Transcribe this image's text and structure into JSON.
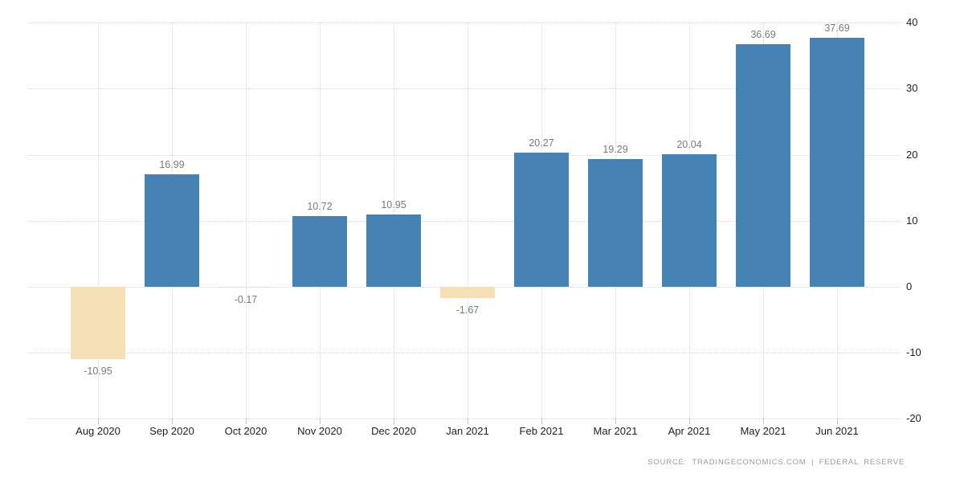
{
  "chart_data": {
    "type": "bar",
    "title": "",
    "categories": [
      "Aug 2020",
      "Sep 2020",
      "Oct 2020",
      "Nov 2020",
      "Dec 2020",
      "Jan 2021",
      "Feb 2021",
      "Mar 2021",
      "Apr 2021",
      "May 2021",
      "Jun 2021"
    ],
    "values": [
      -10.95,
      16.99,
      -0.17,
      10.72,
      10.95,
      -1.67,
      20.27,
      19.29,
      20.04,
      36.69,
      37.69
    ],
    "value_labels": [
      "-10.95",
      "16.99",
      "-0.17",
      "10.72",
      "10.95",
      "-1.67",
      "20.27",
      "19.29",
      "20.04",
      "36.69",
      "37.69"
    ],
    "yticks": [
      40,
      30,
      20,
      10,
      0,
      -10,
      -20
    ],
    "ylim": [
      -20,
      40
    ],
    "xlabel": "",
    "ylabel": "",
    "grid": "dotted, horizontal and vertical at category centers",
    "legend": "none",
    "colors": {
      "positive_bar": "#4682B4",
      "negative_bar": "#F5DFB4",
      "gridline": "#D8D8D8",
      "tick": "#C9C9C9",
      "axis_label": "#1F1F1F",
      "value_label": "#7A7A7A",
      "source_text": "#9A9A9A",
      "background": "#FFFFFF"
    }
  },
  "footer": {
    "source_text": "SOURCE: TRADINGECONOMICS.COM | FEDERAL RESERVE"
  }
}
